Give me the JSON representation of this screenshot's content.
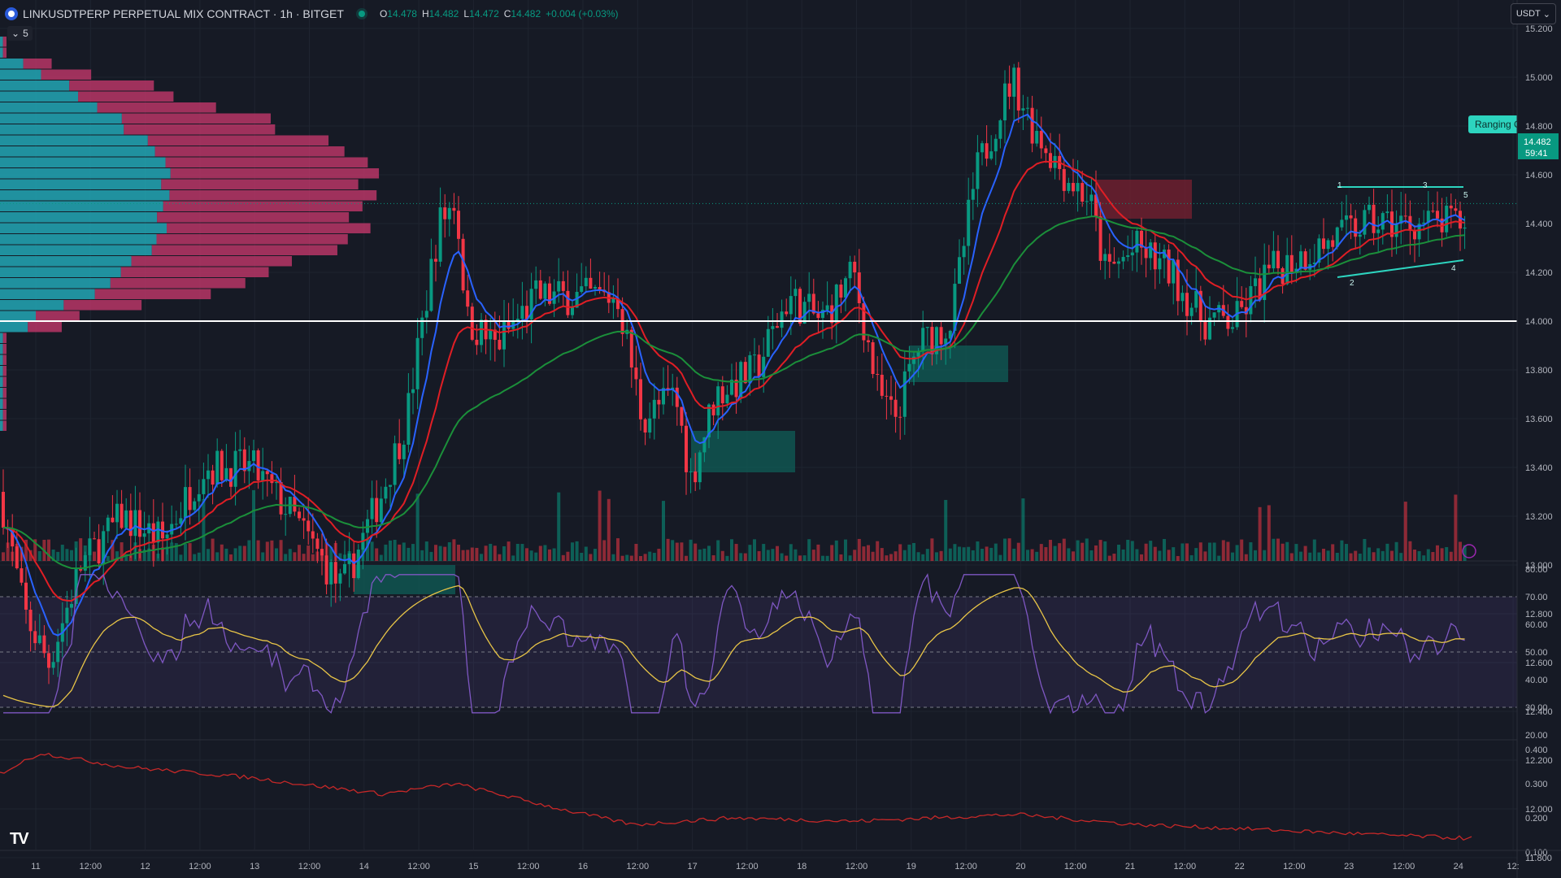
{
  "header": {
    "symbol_title": "LINKUSDTPERP PERPETUAL MIX CONTRACT · 1h · BITGET",
    "ohlc": [
      {
        "key": "O",
        "value": "14.478"
      },
      {
        "key": "H",
        "value": "14.482"
      },
      {
        "key": "L",
        "value": "14.472"
      },
      {
        "key": "C",
        "value": "14.482"
      }
    ],
    "change": "+0.004 (+0.03%)"
  },
  "indicator_toggle": {
    "count": "5"
  },
  "currency_button": {
    "label": "USDT"
  },
  "price_axis": {
    "labels": [
      "15.200",
      "15.000",
      "14.800",
      "14.600",
      "14.400",
      "14.200",
      "14.000",
      "13.800",
      "13.600",
      "13.400",
      "13.200",
      "13.000",
      "12.800",
      "12.600",
      "12.400",
      "12.200",
      "12.000",
      "11.800"
    ],
    "current_price": "14.482",
    "countdown": "59:41",
    "horizontal_line": 14.0
  },
  "rsi_axis": {
    "labels": [
      "80.00",
      "70.00",
      "60.00",
      "50.00",
      "40.00",
      "30.00",
      "20.00"
    ]
  },
  "osc_axis": {
    "labels": [
      "0.400",
      "0.300",
      "0.200",
      "0.100"
    ]
  },
  "time_axis": {
    "labels": [
      "11",
      "12:00",
      "12",
      "12:00",
      "13",
      "12:00",
      "14",
      "12:00",
      "15",
      "12:00",
      "16",
      "12:00",
      "17",
      "12:00",
      "18",
      "12:00",
      "19",
      "12:00",
      "20",
      "12:00",
      "21",
      "12:00",
      "22",
      "12:00",
      "23",
      "12:00",
      "24",
      "12:"
    ]
  },
  "annotation": {
    "label": "Ranging C",
    "points": [
      "1",
      "2",
      "3",
      "4",
      "5"
    ]
  },
  "branding": {
    "logo_text": "TV"
  },
  "colors": {
    "background": "#161a25",
    "up": "#089981",
    "down": "#f23645",
    "ema_blue": "#2962ff",
    "ema_red": "#e01e25",
    "ema_green": "#1b8f3a",
    "rsi": "#7e57c2",
    "rsi_ma": "#e8c547",
    "profile_up": "#22a7b5",
    "profile_down": "#c2376a",
    "accent": "#2dd4bf"
  }
}
